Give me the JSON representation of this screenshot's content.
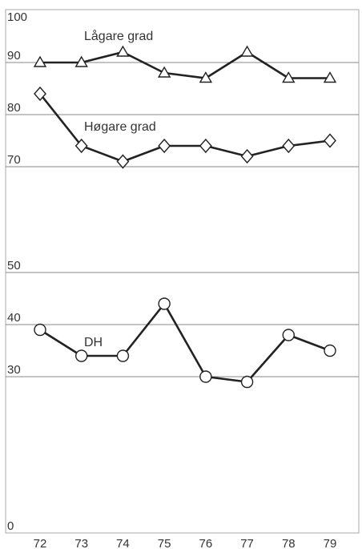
{
  "chart_data": {
    "type": "line",
    "title": "",
    "xlabel": "",
    "ylabel": "",
    "x": [
      "72",
      "73",
      "74",
      "75",
      "76",
      "77",
      "78",
      "79"
    ],
    "y_ticks": [
      "100",
      "90",
      "80",
      "70",
      "50",
      "40",
      "30",
      "0"
    ],
    "ylim": [
      0,
      100
    ],
    "scale_note": "broken axis: 70 at top block, 50-30 middle block",
    "series": [
      {
        "name": "Lågare grad",
        "marker": "triangle",
        "values": [
          90,
          90,
          92,
          88,
          87,
          92,
          87,
          87
        ]
      },
      {
        "name": "Høgare grad",
        "marker": "diamond",
        "values": [
          84,
          74,
          71,
          74,
          74,
          72,
          74,
          75
        ]
      },
      {
        "name": "DH",
        "marker": "circle",
        "values": [
          39,
          34,
          34,
          44,
          30,
          29,
          38,
          35
        ]
      }
    ],
    "colors": {
      "line": "#222222",
      "grid": "#888888",
      "frame": "#aaaaaa"
    }
  }
}
